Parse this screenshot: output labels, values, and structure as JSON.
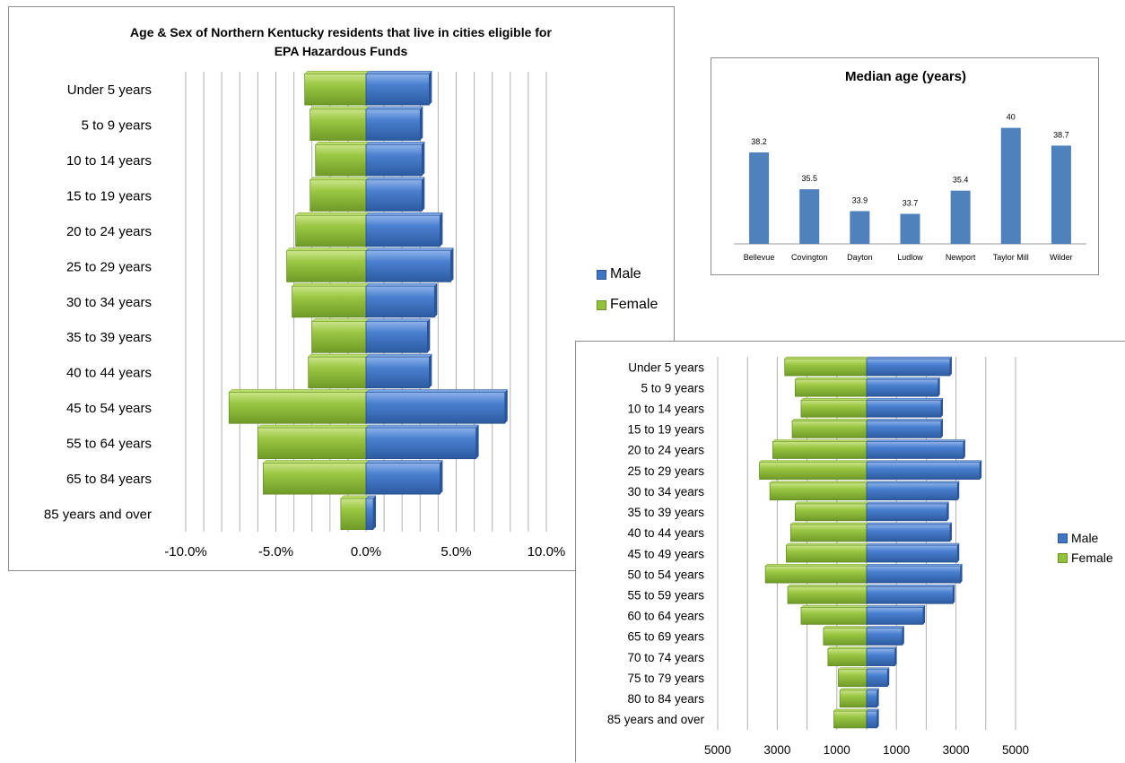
{
  "colors": {
    "male": "#3f75c4",
    "female": "#92c13a",
    "grid": "#b0b0b0",
    "bar_single": "#4f81bd"
  },
  "chart_data": [
    {
      "type": "bar",
      "orientation": "horizontal-pyramid",
      "title": "Age & Sex of Northern Kentucky residents that live in cities eligible for EPA Hazardous Funds",
      "title_lines": [
        "Age & Sex of Northern Kentucky residents that live in cities eligible for",
        "EPA Hazardous Funds"
      ],
      "categories": [
        "Under 5 years",
        "5 to 9 years",
        "10 to 14 years",
        "15 to 19 years",
        "20 to 24 years",
        "25 to 29 years",
        "30 to 34 years",
        "35 to 39 years",
        "40 to 44 years",
        "45 to 54 years",
        "55 to 64 years",
        "65 to 84 years",
        "85 years and over"
      ],
      "series": [
        {
          "name": "Male",
          "values": [
            3.5,
            3.0,
            3.1,
            3.1,
            4.1,
            4.7,
            3.8,
            3.4,
            3.5,
            7.7,
            6.1,
            4.1,
            0.4
          ]
        },
        {
          "name": "Female",
          "values": [
            -3.4,
            -3.1,
            -2.8,
            -3.1,
            -3.9,
            -4.4,
            -4.1,
            -3.0,
            -3.2,
            -7.6,
            -6.0,
            -5.7,
            -1.4
          ]
        }
      ],
      "xlim": [
        -10,
        10
      ],
      "xticks": [
        "-10.0%",
        "-5.0%",
        "0.0%",
        "5.0%",
        "10.0%"
      ],
      "legend": [
        "Male",
        "Female"
      ],
      "legend_position": "right",
      "grid": true
    },
    {
      "type": "bar",
      "title": "Median age (years)",
      "categories": [
        "Bellevue",
        "Covington",
        "Dayton",
        "Ludlow",
        "Newport",
        "Taylor Mill",
        "Wilder"
      ],
      "values": [
        38.2,
        35.5,
        33.9,
        33.7,
        35.4,
        40,
        38.7
      ],
      "labels": [
        "38.2",
        "35.5",
        "33.9",
        "33.7",
        "35.4",
        "40",
        "38.7"
      ],
      "ylim": [
        31.5,
        40.5
      ],
      "grid": false
    },
    {
      "type": "bar",
      "orientation": "horizontal-pyramid",
      "categories": [
        "Under 5 years",
        "5 to 9 years",
        "10 to 14 years",
        "15 to 19 years",
        "20 to 24 years",
        "25 to 29 years",
        "30 to 34 years",
        "35 to 39 years",
        "40 to 44 years",
        "45 to 49 years",
        "50 to 54 years",
        "55 to 59 years",
        "60 to 64 years",
        "65 to 69 years",
        "70 to 74 years",
        "75 to 79 years",
        "80 to 84 years",
        "85 years and over"
      ],
      "series": [
        {
          "name": "Male",
          "values": [
            2800,
            2400,
            2500,
            2500,
            3250,
            3800,
            3050,
            2700,
            2800,
            3050,
            3150,
            2900,
            1900,
            1200,
            950,
            700,
            350,
            350
          ]
        },
        {
          "name": "Female",
          "values": [
            -2750,
            -2400,
            -2200,
            -2500,
            -3150,
            -3600,
            -3250,
            -2400,
            -2550,
            -2700,
            -3400,
            -2650,
            -2200,
            -1450,
            -1300,
            -950,
            -900,
            -1100
          ]
        }
      ],
      "xlim": [
        -5000,
        5000
      ],
      "xticks": [
        "5000",
        "3000",
        "1000",
        "1000",
        "3000",
        "5000"
      ],
      "legend": [
        "Male",
        "Female"
      ],
      "legend_position": "right",
      "grid": true
    }
  ]
}
